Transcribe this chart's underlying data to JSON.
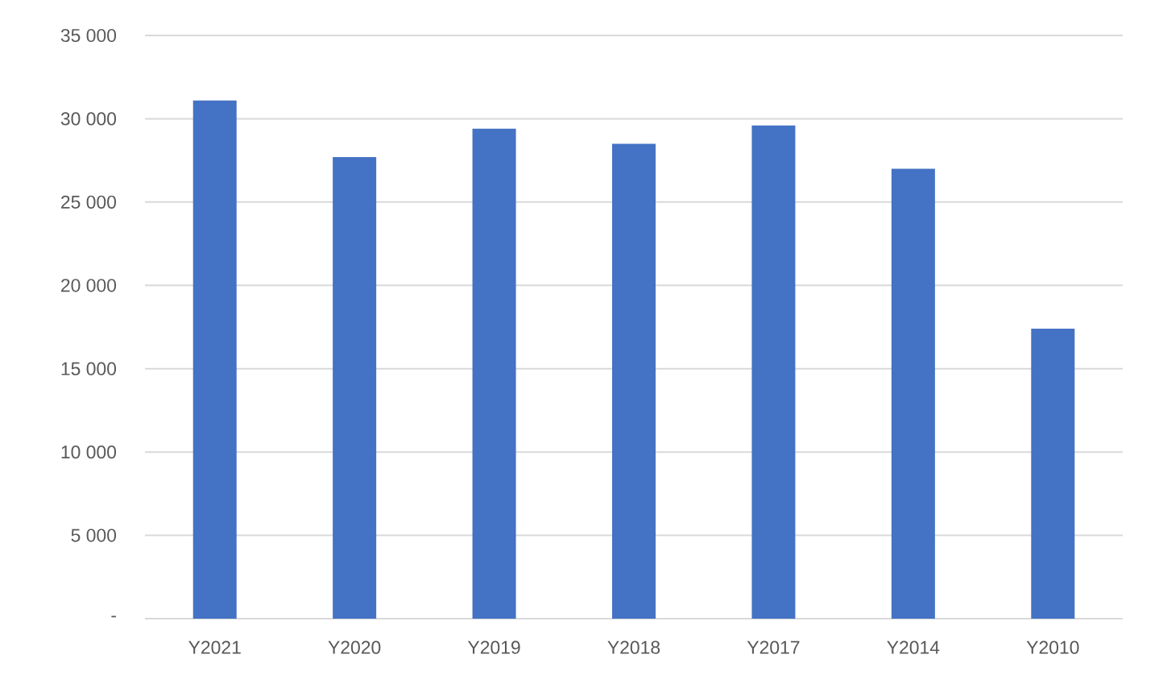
{
  "chart_data": {
    "type": "bar",
    "categories": [
      "Y2021",
      "Y2020",
      "Y2019",
      "Y2018",
      "Y2017",
      "Y2014",
      "Y2010"
    ],
    "values": [
      31100,
      27700,
      29400,
      28500,
      29600,
      27000,
      17400
    ],
    "color": "#4472c4",
    "ylim": [
      0,
      35000
    ],
    "yticks": [
      {
        "value": 0,
        "label": "-"
      },
      {
        "value": 5000,
        "label": "5 000"
      },
      {
        "value": 10000,
        "label": "10 000"
      },
      {
        "value": 15000,
        "label": "15 000"
      },
      {
        "value": 20000,
        "label": "20 000"
      },
      {
        "value": 25000,
        "label": "25 000"
      },
      {
        "value": 30000,
        "label": "30 000"
      },
      {
        "value": 35000,
        "label": "35 000"
      }
    ],
    "grid": "y"
  }
}
